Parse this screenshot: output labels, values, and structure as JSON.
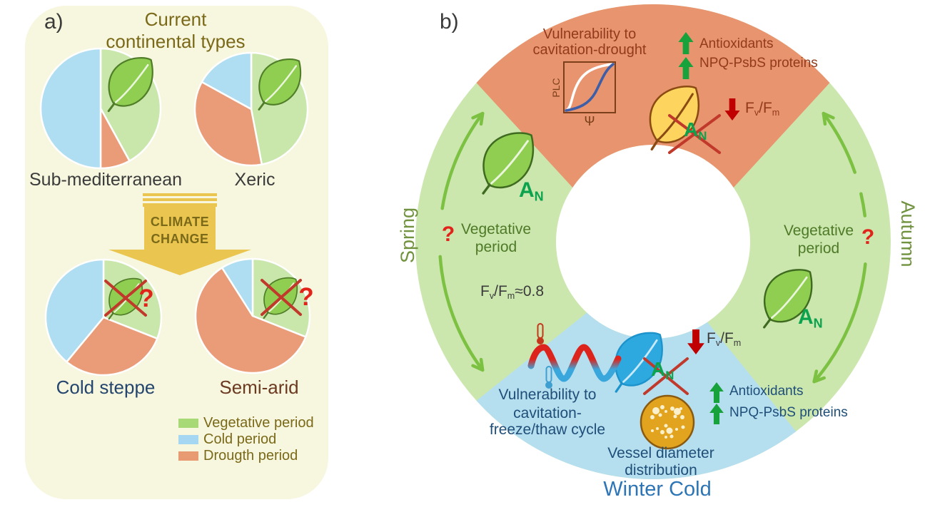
{
  "colors": {
    "vegetative": "#C9E6AB",
    "cold": "#AFDDF2",
    "drought": "#EA9B77",
    "legend_vegetative": "#A8D977",
    "legend_cold": "#A6D7F2",
    "legend_drought": "#E89B72",
    "ring_green": "#CBE7AE",
    "ring_blue": "#B5DFEF",
    "ring_orange": "#E8946E",
    "side_arrow_green": "#7CC142",
    "up_arrow_green": "#17A23C",
    "down_arrow_red": "#C00000",
    "question_red": "#E2231A",
    "climate_yellow": "#EAC651",
    "leaf_green": "#8FCE50",
    "leaf_yellow": "#FCD45E",
    "leaf_blue": "#2EA9E0"
  },
  "panel_a": {
    "label": "a)",
    "title": {
      "line1": "Current",
      "line2": "continental types"
    },
    "pies": [
      {
        "name": "Sub-mediterranean",
        "slices": {
          "vegetative": 42,
          "drought": 8,
          "cold": 50
        },
        "crossed": false
      },
      {
        "name": "Xeric",
        "slices": {
          "vegetative": 47,
          "drought": 36,
          "cold": 17
        },
        "crossed": false
      },
      {
        "name": "Cold steppe",
        "slices": {
          "vegetative": 31,
          "drought": 30,
          "cold": 39
        },
        "crossed": true,
        "question": "?"
      },
      {
        "name": "Semi-arid",
        "slices": {
          "vegetative": 31,
          "drought": 60,
          "cold": 9
        },
        "crossed": true,
        "question": "?"
      }
    ],
    "climate_arrow": {
      "line1": "CLIMATE",
      "line2": "CHANGE"
    },
    "legend": [
      {
        "label": "Vegetative period"
      },
      {
        "label": "Cold period"
      },
      {
        "label": "Drougth period"
      }
    ]
  },
  "panel_b": {
    "label": "b)",
    "shared": {
      "an_base": "A",
      "an_sub": "N",
      "f": "F",
      "sub_v": "v",
      "slash_f": "/F",
      "sub_m": "m"
    },
    "summer": {
      "title_line1": "Vulnerability to",
      "title_line2": "cavitation-drought",
      "plot_ylabel": "PLC",
      "plot_xlabel": "Ψ",
      "up_item1": "Antioxidants",
      "up_item2": "NPQ-PsbS proteins"
    },
    "spring": {
      "season": "Spring",
      "question": "?",
      "veg_line1": "Vegetative",
      "veg_line2": "period",
      "fvfm_suffix": "≈0.8"
    },
    "autumn": {
      "season": "Autumn",
      "question": "?",
      "veg_line1": "Vegetative",
      "veg_line2": "period"
    },
    "winter": {
      "title_line1": "Vulnerability to",
      "title_line2": "cavitation-",
      "title_line3": "freeze/thaw cycle",
      "vessel_line1": "Vessel diameter",
      "vessel_line2": "distribution",
      "season": "Winter Cold",
      "up_item1": "Antioxidants",
      "up_item2": "NPQ-PsbS proteins"
    }
  }
}
